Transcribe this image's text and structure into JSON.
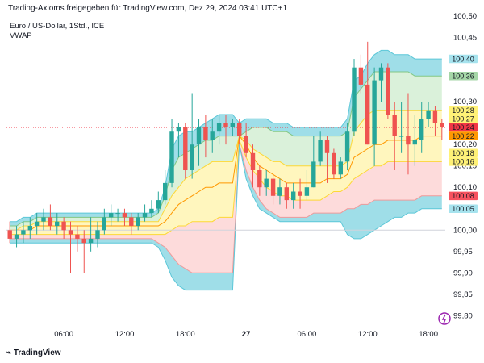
{
  "header": {
    "title": "Trading-Axioms freigegeben für TradingView.com, Dez 29, 2024 03:41 UTC+1",
    "symbol": "Euro / US-Dollar, 1Std., ICE",
    "indicator": "VWAP",
    "logo_text": "TradingView"
  },
  "colors": {
    "up": "#26a69a",
    "down": "#ef5350",
    "band_blue": "#7fd3e0",
    "band_green": "#cdeccd",
    "band_yellow": "#fff3a8",
    "band_red": "#fccfcf"
  },
  "chart_data": {
    "type": "candlestick",
    "ylim": [
      99.78,
      100.5
    ],
    "y_ticks": [
      {
        "value": 100.45,
        "label": "100,45"
      },
      {
        "value": 100.3,
        "label": "100,30"
      },
      {
        "value": 100.2,
        "label": "100,20"
      },
      {
        "value": 100.15,
        "label": "100,15"
      },
      {
        "value": 100.1,
        "label": "100,10"
      },
      {
        "value": 100.0,
        "label": "100,00"
      },
      {
        "value": 99.95,
        "label": "99,95"
      },
      {
        "value": 99.9,
        "label": "99,90"
      },
      {
        "value": 99.85,
        "label": "99,85"
      },
      {
        "value": 99.8,
        "label": "99,80"
      }
    ],
    "top_tick": {
      "value": 100.5,
      "label": "100,50"
    },
    "x_ticks": [
      {
        "index": 8,
        "label": "06:00",
        "bold": false
      },
      {
        "index": 17,
        "label": "12:00",
        "bold": false
      },
      {
        "index": 26,
        "label": "18:00",
        "bold": false
      },
      {
        "index": 35,
        "label": "27",
        "bold": true
      },
      {
        "index": 44,
        "label": "06:00",
        "bold": false
      },
      {
        "index": 53,
        "label": "12:00",
        "bold": false
      },
      {
        "index": 62,
        "label": "18:00",
        "bold": false
      }
    ],
    "price_labels": [
      {
        "value": 100.4,
        "label": "100,40",
        "color": "#a6e3ee"
      },
      {
        "value": 100.36,
        "label": "100,36",
        "color": "#a5d6a7"
      },
      {
        "value": 100.28,
        "label": "100,28",
        "color": "#fff176"
      },
      {
        "value": 100.27,
        "label": "100,27",
        "color": "#fff176"
      },
      {
        "value": 100.24,
        "label": "100,24",
        "color": "#f23645"
      },
      {
        "value": 100.22,
        "label": "100,22",
        "color": "#ff9800"
      },
      {
        "value": 100.18,
        "label": "100,18",
        "color": "#fff176"
      },
      {
        "value": 100.16,
        "label": "100,16",
        "color": "#fff176"
      },
      {
        "value": 100.08,
        "label": "100,08",
        "color": "#f7525f"
      },
      {
        "value": 100.05,
        "label": "100,05",
        "color": "#a6e3ee"
      }
    ],
    "current_price": 100.24,
    "candles": [
      [
        100.0,
        99.98,
        100.02,
        99.97
      ],
      [
        99.98,
        99.99,
        100.01,
        99.96
      ],
      [
        99.99,
        100.0,
        100.02,
        99.97
      ],
      [
        100.0,
        100.01,
        100.03,
        99.98
      ],
      [
        100.01,
        100.02,
        100.04,
        99.99
      ],
      [
        100.02,
        100.03,
        100.05,
        100.0
      ],
      [
        100.03,
        100.01,
        100.06,
        100.0
      ],
      [
        100.01,
        100.02,
        100.04,
        99.99
      ],
      [
        100.02,
        100.0,
        100.03,
        99.98
      ],
      [
        100.0,
        99.99,
        100.02,
        99.9
      ],
      [
        99.99,
        99.98,
        100.01,
        99.95
      ],
      [
        99.98,
        99.97,
        100.0,
        99.9
      ],
      [
        99.97,
        99.98,
        100.03,
        99.95
      ],
      [
        99.98,
        100.0,
        100.02,
        99.96
      ],
      [
        100.0,
        100.03,
        100.05,
        99.99
      ],
      [
        100.03,
        100.04,
        100.06,
        100.01
      ],
      [
        100.04,
        100.04,
        100.05,
        100.02
      ],
      [
        100.04,
        100.03,
        100.05,
        100.01
      ],
      [
        100.03,
        100.01,
        100.04,
        99.99
      ],
      [
        100.01,
        100.03,
        100.04,
        100.0
      ],
      [
        100.03,
        100.04,
        100.06,
        100.02
      ],
      [
        100.04,
        100.05,
        100.07,
        100.03
      ],
      [
        100.05,
        100.07,
        100.09,
        100.04
      ],
      [
        100.07,
        100.11,
        100.14,
        100.06
      ],
      [
        100.11,
        100.23,
        100.26,
        100.1
      ],
      [
        100.23,
        100.24,
        100.25,
        100.17
      ],
      [
        100.24,
        100.14,
        100.25,
        100.12
      ],
      [
        100.14,
        100.2,
        100.32,
        100.12
      ],
      [
        100.2,
        100.24,
        100.26,
        100.15
      ],
      [
        100.24,
        100.21,
        100.27,
        100.17
      ],
      [
        100.21,
        100.23,
        100.26,
        100.18
      ],
      [
        100.23,
        100.25,
        100.27,
        100.2
      ],
      [
        100.25,
        100.24,
        100.27,
        100.2
      ],
      [
        100.24,
        100.25,
        100.26,
        100.22
      ],
      [
        100.25,
        100.22,
        100.26,
        100.2
      ],
      [
        100.22,
        100.18,
        100.25,
        100.17
      ],
      [
        100.18,
        100.14,
        100.2,
        100.1
      ],
      [
        100.14,
        100.1,
        100.15,
        100.08
      ],
      [
        100.1,
        100.12,
        100.14,
        100.08
      ],
      [
        100.12,
        100.08,
        100.13,
        100.06
      ],
      [
        100.08,
        100.1,
        100.12,
        100.06
      ],
      [
        100.1,
        100.07,
        100.11,
        100.05
      ],
      [
        100.07,
        100.09,
        100.11,
        100.05
      ],
      [
        100.09,
        100.08,
        100.12,
        100.05
      ],
      [
        100.08,
        100.1,
        100.14,
        100.07
      ],
      [
        100.1,
        100.16,
        100.22,
        100.1
      ],
      [
        100.16,
        100.21,
        100.23,
        100.15
      ],
      [
        100.21,
        100.18,
        100.22,
        100.11
      ],
      [
        100.18,
        100.13,
        100.19,
        100.12
      ],
      [
        100.13,
        100.16,
        100.17,
        100.12
      ],
      [
        100.16,
        100.23,
        100.25,
        100.14
      ],
      [
        100.23,
        100.38,
        100.4,
        100.22
      ],
      [
        100.38,
        100.34,
        100.41,
        100.32
      ],
      [
        100.34,
        100.2,
        100.44,
        100.2
      ],
      [
        100.2,
        100.35,
        100.38,
        100.15
      ],
      [
        100.35,
        100.38,
        100.39,
        100.3
      ],
      [
        100.38,
        100.27,
        100.39,
        100.26
      ],
      [
        100.27,
        100.22,
        100.3,
        100.14
      ],
      [
        100.22,
        100.22,
        100.3,
        100.18
      ],
      [
        100.22,
        100.2,
        100.32,
        100.13
      ],
      [
        100.2,
        100.21,
        100.27,
        100.15
      ],
      [
        100.21,
        100.26,
        100.3,
        100.18
      ],
      [
        100.26,
        100.28,
        100.3,
        100.24
      ],
      [
        100.28,
        100.25,
        100.29,
        100.22
      ],
      [
        100.25,
        100.24,
        100.26,
        100.21
      ]
    ],
    "bands": {
      "upper2": [
        100.02,
        100.02,
        100.03,
        100.03,
        100.04,
        100.04,
        100.04,
        100.04,
        100.04,
        100.04,
        100.04,
        100.04,
        100.04,
        100.04,
        100.04,
        100.04,
        100.04,
        100.04,
        100.04,
        100.04,
        100.04,
        100.04,
        100.05,
        100.1,
        100.19,
        100.22,
        100.23,
        100.23,
        100.24,
        100.25,
        100.26,
        100.27,
        100.27,
        100.27,
        100.25,
        100.26,
        100.26,
        100.26,
        100.26,
        100.25,
        100.25,
        100.25,
        100.24,
        100.24,
        100.24,
        100.24,
        100.24,
        100.24,
        100.24,
        100.24,
        100.26,
        100.35,
        100.36,
        100.39,
        100.41,
        100.42,
        100.42,
        100.41,
        100.41,
        100.41,
        100.4,
        100.4,
        100.4,
        100.4,
        100.4
      ],
      "upper1": [
        100.01,
        100.01,
        100.02,
        100.02,
        100.03,
        100.03,
        100.03,
        100.03,
        100.03,
        100.03,
        100.03,
        100.03,
        100.03,
        100.03,
        100.03,
        100.03,
        100.03,
        100.03,
        100.03,
        100.03,
        100.03,
        100.03,
        100.04,
        100.08,
        100.14,
        100.17,
        100.18,
        100.19,
        100.2,
        100.21,
        100.21,
        100.22,
        100.22,
        100.22,
        100.22,
        100.23,
        100.24,
        100.24,
        100.24,
        100.23,
        100.23,
        100.23,
        100.22,
        100.22,
        100.22,
        100.22,
        100.22,
        100.22,
        100.22,
        100.22,
        100.23,
        100.31,
        100.33,
        100.35,
        100.37,
        100.37,
        100.37,
        100.37,
        100.37,
        100.37,
        100.36,
        100.36,
        100.36,
        100.36,
        100.36
      ],
      "upper0": [
        100.0,
        100.0,
        100.01,
        100.01,
        100.02,
        100.02,
        100.02,
        100.02,
        100.02,
        100.02,
        100.02,
        100.02,
        100.02,
        100.02,
        100.02,
        100.02,
        100.02,
        100.02,
        100.02,
        100.02,
        100.02,
        100.02,
        100.02,
        100.05,
        100.08,
        100.1,
        100.12,
        100.13,
        100.14,
        100.15,
        100.16,
        100.16,
        100.16,
        100.16,
        100.22,
        100.21,
        100.19,
        100.18,
        100.17,
        100.16,
        100.16,
        100.15,
        100.15,
        100.15,
        100.15,
        100.15,
        100.15,
        100.15,
        100.15,
        100.15,
        100.16,
        100.23,
        100.25,
        100.27,
        100.28,
        100.28,
        100.28,
        100.28,
        100.28,
        100.28,
        100.28,
        100.28,
        100.28,
        100.28,
        100.28
      ],
      "vwap": [
        100.0,
        100.0,
        100.0,
        100.0,
        100.01,
        100.01,
        100.01,
        100.01,
        100.01,
        100.01,
        100.01,
        100.01,
        100.01,
        100.01,
        100.01,
        100.01,
        100.01,
        100.01,
        100.01,
        100.01,
        100.01,
        100.01,
        100.01,
        100.02,
        100.04,
        100.06,
        100.07,
        100.08,
        100.09,
        100.1,
        100.1,
        100.11,
        100.11,
        100.11,
        100.22,
        100.2,
        100.17,
        100.15,
        100.14,
        100.13,
        100.12,
        100.11,
        100.11,
        100.11,
        100.11,
        100.11,
        100.11,
        100.12,
        100.12,
        100.12,
        100.13,
        100.17,
        100.18,
        100.19,
        100.2,
        100.2,
        100.21,
        100.21,
        100.21,
        100.21,
        100.21,
        100.22,
        100.22,
        100.22,
        100.22
      ],
      "lower0": [
        99.99,
        99.99,
        99.99,
        99.99,
        99.99,
        99.99,
        99.99,
        99.99,
        99.99,
        99.99,
        99.99,
        99.99,
        99.99,
        99.99,
        99.99,
        99.99,
        99.99,
        99.99,
        99.99,
        99.99,
        99.99,
        99.99,
        99.99,
        99.99,
        100.0,
        100.01,
        100.01,
        100.02,
        100.02,
        100.02,
        100.02,
        100.03,
        100.03,
        100.03,
        100.21,
        100.17,
        100.14,
        100.12,
        100.1,
        100.09,
        100.08,
        100.08,
        100.07,
        100.07,
        100.07,
        100.07,
        100.07,
        100.08,
        100.09,
        100.09,
        100.1,
        100.12,
        100.13,
        100.14,
        100.15,
        100.15,
        100.16,
        100.16,
        100.16,
        100.16,
        100.16,
        100.16,
        100.16,
        100.16,
        100.16
      ],
      "lower1": [
        99.98,
        99.98,
        99.98,
        99.98,
        99.98,
        99.98,
        99.98,
        99.98,
        99.98,
        99.98,
        99.98,
        99.98,
        99.98,
        99.98,
        99.98,
        99.98,
        99.98,
        99.98,
        99.98,
        99.98,
        99.98,
        99.98,
        99.97,
        99.96,
        99.94,
        99.92,
        99.91,
        99.9,
        99.9,
        99.9,
        99.9,
        99.9,
        99.9,
        99.9,
        100.2,
        100.14,
        100.1,
        100.07,
        100.05,
        100.04,
        100.03,
        100.03,
        100.03,
        100.03,
        100.03,
        100.04,
        100.04,
        100.04,
        100.04,
        100.04,
        100.05,
        100.05,
        100.06,
        100.06,
        100.07,
        100.07,
        100.07,
        100.07,
        100.07,
        100.07,
        100.07,
        100.08,
        100.08,
        100.08,
        100.08
      ],
      "lower2": [
        99.97,
        99.97,
        99.97,
        99.97,
        99.97,
        99.97,
        99.97,
        99.97,
        99.97,
        99.97,
        99.97,
        99.97,
        99.97,
        99.97,
        99.97,
        99.97,
        99.97,
        99.97,
        99.97,
        99.97,
        99.97,
        99.97,
        99.96,
        99.93,
        99.89,
        99.87,
        99.86,
        99.86,
        99.86,
        99.86,
        99.86,
        99.86,
        99.86,
        99.86,
        100.2,
        100.12,
        100.08,
        100.05,
        100.04,
        100.03,
        100.02,
        100.02,
        100.02,
        100.02,
        100.02,
        100.02,
        100.02,
        100.02,
        100.02,
        100.02,
        99.99,
        99.98,
        99.98,
        99.99,
        100.0,
        100.01,
        100.02,
        100.03,
        100.03,
        100.04,
        100.04,
        100.05,
        100.05,
        100.05,
        100.05
      ]
    }
  }
}
